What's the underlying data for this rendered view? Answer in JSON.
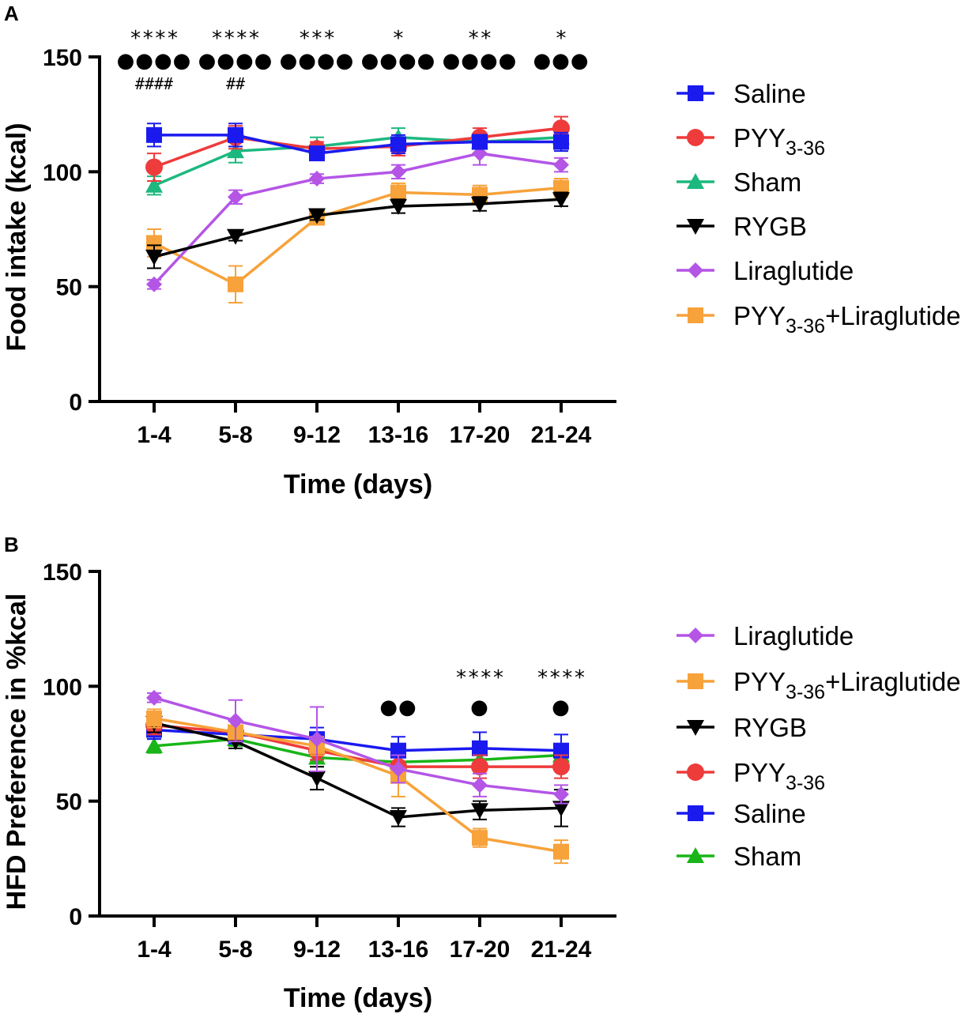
{
  "chart_data": [
    {
      "panel_label": "A",
      "type": "line",
      "xlabel": "Time (days)",
      "ylabel": "Food intake (kcal)",
      "ylim": [
        0,
        150
      ],
      "yticks": [
        0,
        50,
        100,
        150
      ],
      "categories": [
        "1-4",
        "5-8",
        "9-12",
        "13-16",
        "17-20",
        "21-24"
      ],
      "series": [
        {
          "name": "Saline",
          "name_main": "Saline",
          "name_sub": "",
          "name_rest": "",
          "color": "#1a1aef",
          "marker": "square",
          "values": [
            116,
            116,
            108,
            112,
            113,
            113
          ],
          "errors": [
            5,
            5,
            3,
            4,
            3,
            4
          ]
        },
        {
          "name": "PYY3-36",
          "name_main": "PYY",
          "name_sub": "3-36",
          "name_rest": "",
          "color": "#ee3b3b",
          "marker": "circle",
          "values": [
            102,
            115,
            110,
            111,
            115,
            119
          ],
          "errors": [
            6,
            5,
            3,
            4,
            4,
            5
          ]
        },
        {
          "name": "Sham",
          "name_main": "Sham",
          "name_sub": "",
          "name_rest": "",
          "color": "#1cb87f",
          "marker": "triangle",
          "values": [
            94,
            109,
            111,
            115,
            113,
            115
          ],
          "errors": [
            4,
            5,
            4,
            4,
            3,
            4
          ]
        },
        {
          "name": "RYGB",
          "name_main": "RYGB",
          "name_sub": "",
          "name_rest": "",
          "color": "#000000",
          "marker": "triangle-down",
          "values": [
            63,
            72,
            81,
            85,
            86,
            88
          ],
          "errors": [
            5,
            2,
            2,
            3,
            3,
            3
          ]
        },
        {
          "name": "Liraglutide",
          "name_main": "Liraglutide",
          "name_sub": "",
          "name_rest": "",
          "color": "#b455e6",
          "marker": "diamond",
          "values": [
            51,
            89,
            97,
            100,
            108,
            103
          ],
          "errors": [
            2,
            3,
            2,
            3,
            5,
            3
          ]
        },
        {
          "name": "PYY3-36+Liraglutide",
          "name_main": "PYY",
          "name_sub": "3-36",
          "name_rest": "+Liraglutide",
          "color": "#f7a23a",
          "marker": "square",
          "values": [
            69,
            51,
            80,
            91,
            90,
            93
          ],
          "errors": [
            6,
            8,
            3,
            4,
            4,
            4
          ]
        }
      ],
      "significance": [
        {
          "category": "1-4",
          "stars": "****",
          "dots": "●●●●",
          "hashes": "####"
        },
        {
          "category": "5-8",
          "stars": "****",
          "dots": "●●●●",
          "hashes": "##"
        },
        {
          "category": "9-12",
          "stars": "***",
          "dots": "●●●●",
          "hashes": ""
        },
        {
          "category": "13-16",
          "stars": "*",
          "dots": "●●●●",
          "hashes": ""
        },
        {
          "category": "17-20",
          "stars": "**",
          "dots": "●●●●",
          "hashes": ""
        },
        {
          "category": "21-24",
          "stars": "*",
          "dots": "●●●",
          "hashes": ""
        }
      ]
    },
    {
      "panel_label": "B",
      "type": "line",
      "xlabel": "Time (days)",
      "ylabel": "HFD Preference in %kcal",
      "ylim": [
        0,
        150
      ],
      "yticks": [
        0,
        50,
        100,
        150
      ],
      "categories": [
        "1-4",
        "5-8",
        "9-12",
        "13-16",
        "17-20",
        "21-24"
      ],
      "series": [
        {
          "name": "Liraglutide",
          "name_main": "Liraglutide",
          "name_sub": "",
          "name_rest": "",
          "color": "#b455e6",
          "marker": "diamond",
          "values": [
            95,
            85,
            77,
            64,
            57,
            53
          ],
          "errors": [
            2,
            9,
            14,
            6,
            5,
            4
          ]
        },
        {
          "name": "PYY3-36+Liraglutide",
          "name_main": "PYY",
          "name_sub": "3-36",
          "name_rest": "+Liraglutide",
          "color": "#f7a23a",
          "marker": "square",
          "values": [
            86,
            80,
            74,
            61,
            34,
            28
          ],
          "errors": [
            4,
            3,
            4,
            9,
            4,
            5
          ]
        },
        {
          "name": "RYGB",
          "name_main": "RYGB",
          "name_sub": "",
          "name_rest": "",
          "color": "#000000",
          "marker": "triangle-down",
          "values": [
            84,
            76,
            60,
            43,
            46,
            47
          ],
          "errors": [
            4,
            3,
            5,
            4,
            4,
            8
          ]
        },
        {
          "name": "PYY3-36",
          "name_main": "PYY",
          "name_sub": "3-36",
          "name_rest": "",
          "color": "#ee3b3b",
          "marker": "circle",
          "values": [
            83,
            80,
            72,
            65,
            65,
            65
          ],
          "errors": [
            4,
            3,
            4,
            5,
            5,
            5
          ]
        },
        {
          "name": "Saline",
          "name_main": "Saline",
          "name_sub": "",
          "name_rest": "",
          "color": "#1a1aef",
          "marker": "square",
          "values": [
            81,
            79,
            77,
            72,
            73,
            72
          ],
          "errors": [
            4,
            4,
            5,
            6,
            7,
            7
          ]
        },
        {
          "name": "Sham",
          "name_main": "Sham",
          "name_sub": "",
          "name_rest": "",
          "color": "#19b519",
          "marker": "triangle",
          "values": [
            74,
            77,
            69,
            67,
            68,
            70
          ],
          "errors": [
            3,
            3,
            4,
            4,
            4,
            4
          ]
        }
      ],
      "significance": [
        {
          "category": "13-16",
          "stars": "",
          "dots": "●●",
          "hashes": ""
        },
        {
          "category": "17-20",
          "stars": "****",
          "dots": "●",
          "hashes": ""
        },
        {
          "category": "21-24",
          "stars": "****",
          "dots": "●",
          "hashes": ""
        }
      ]
    }
  ]
}
